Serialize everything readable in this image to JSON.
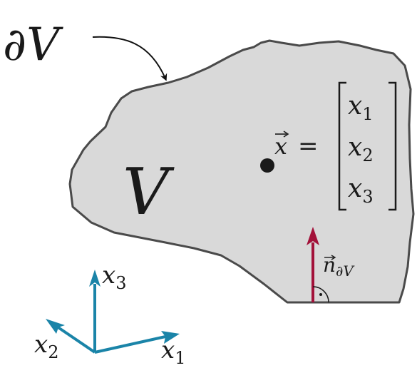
{
  "labels": {
    "boundary_partial": "∂",
    "boundary_V": "V",
    "volume_V": "V",
    "position_vec": "x",
    "equals": "=",
    "vector_entries": [
      {
        "base": "x",
        "sub": "1"
      },
      {
        "base": "x",
        "sub": "2"
      },
      {
        "base": "x",
        "sub": "3"
      }
    ],
    "normal_base": "n",
    "normal_sub": "∂V",
    "right_angle_dot": "·",
    "axes": {
      "x1": {
        "base": "x",
        "sub": "1"
      },
      "x2": {
        "base": "x",
        "sub": "2"
      },
      "x3": {
        "base": "x",
        "sub": "3"
      }
    }
  },
  "colors": {
    "region_fill": "#d9d9d9",
    "region_stroke": "#4a4a4a",
    "normal_arrow": "#a3123a",
    "axes": "#1a84a8",
    "text": "#1a1a1a"
  }
}
